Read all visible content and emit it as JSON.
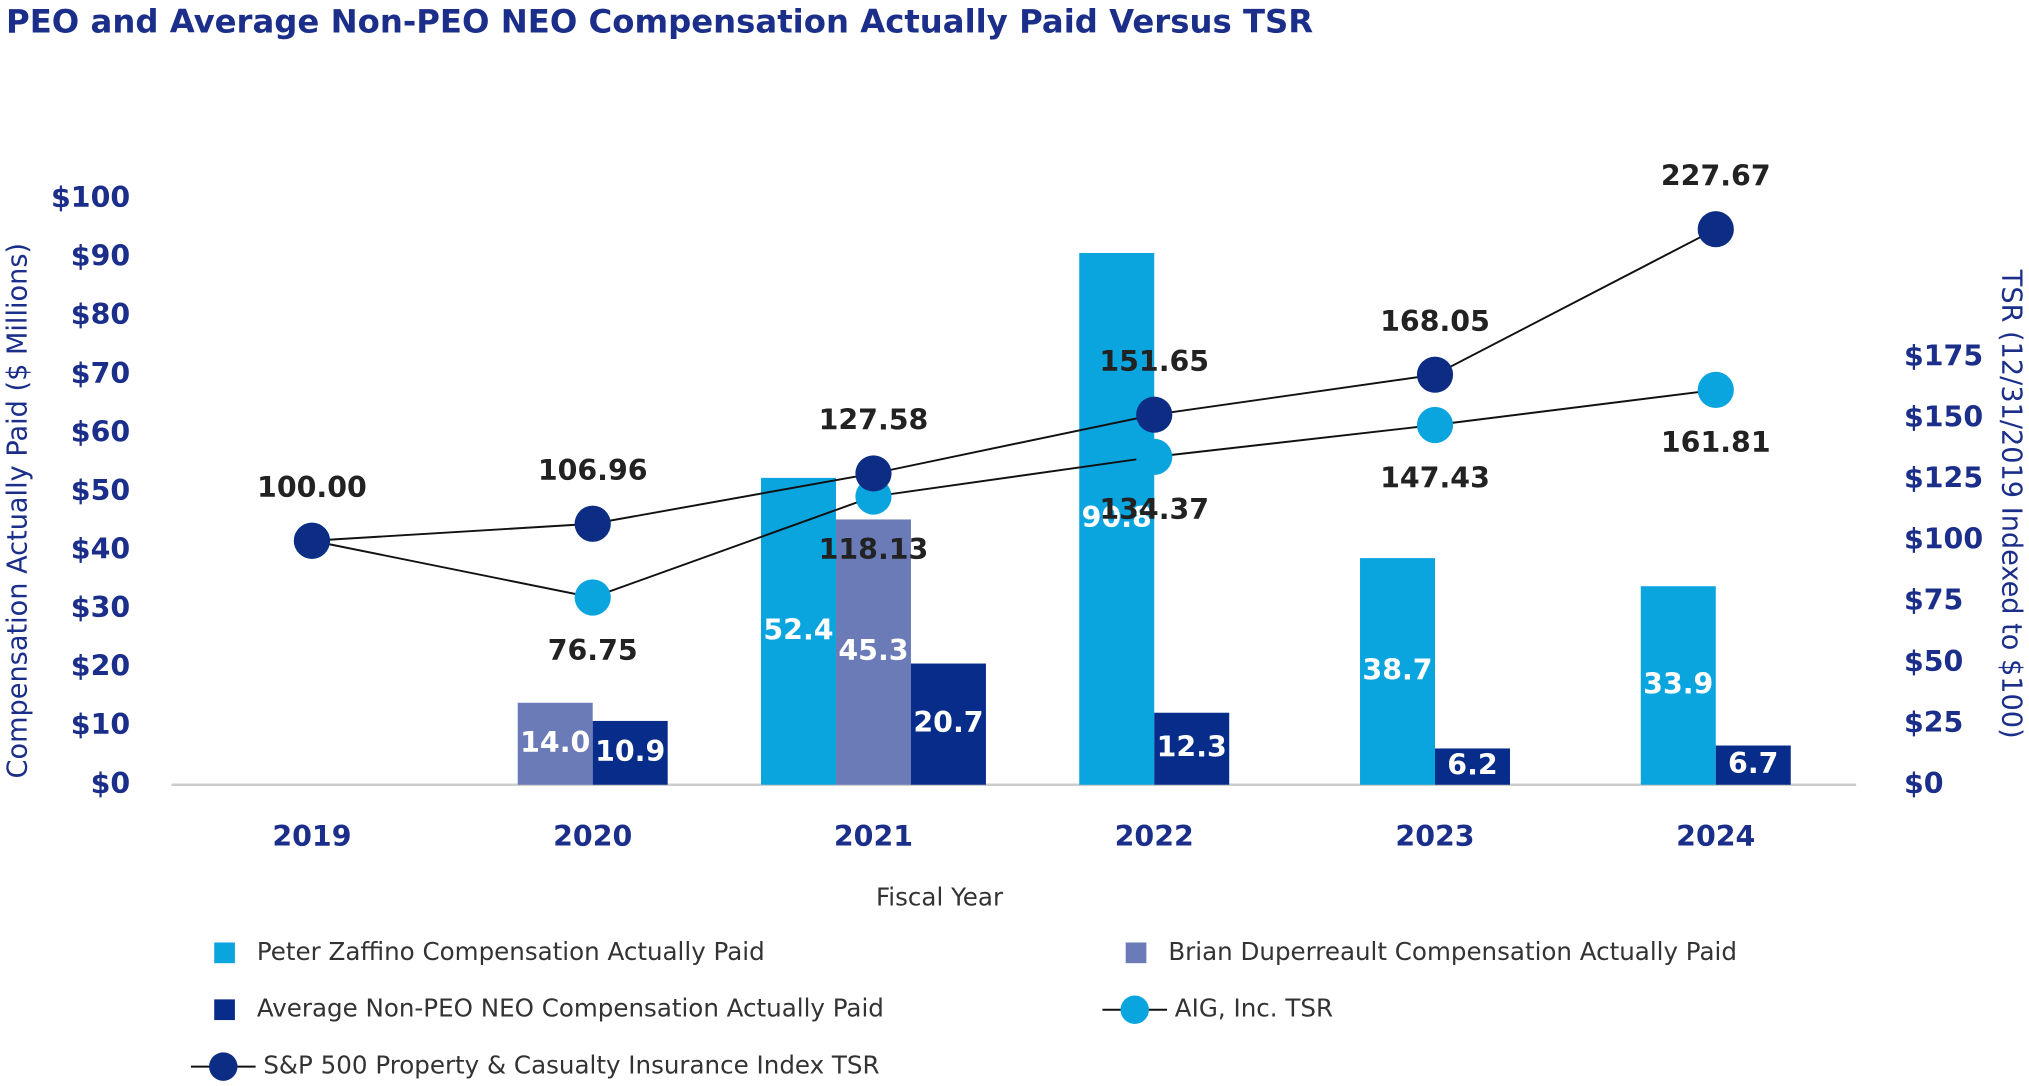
{
  "chart_data": {
    "type": "bar",
    "title": "PEO and Average Non-PEO NEO Compensation Actually Paid Versus TSR",
    "x_label": "Fiscal Year",
    "y_label": "Compensation Actually Paid ($ Millions)",
    "y2_label": "TSR (12/31/2019 Indexed to $100)",
    "categories": [
      "2019",
      "2020",
      "2021",
      "2022",
      "2023",
      "2024"
    ],
    "ylim": [
      0,
      100
    ],
    "yticks": [
      {
        "value": 0,
        "label": "$0"
      },
      {
        "value": 10,
        "label": "$10"
      },
      {
        "value": 20,
        "label": "$20"
      },
      {
        "value": 30,
        "label": "$30"
      },
      {
        "value": 40,
        "label": "$40"
      },
      {
        "value": 50,
        "label": "$50"
      },
      {
        "value": 60,
        "label": "$60"
      },
      {
        "value": 70,
        "label": "$70"
      },
      {
        "value": 80,
        "label": "$80"
      },
      {
        "value": 90,
        "label": "$90"
      },
      {
        "value": 100,
        "label": "$100"
      }
    ],
    "y2lim": [
      0,
      240
    ],
    "y2ticks": [
      {
        "value": 0,
        "label": "$0"
      },
      {
        "value": 25,
        "label": "$25"
      },
      {
        "value": 50,
        "label": "$50"
      },
      {
        "value": 75,
        "label": "$75"
      },
      {
        "value": 100,
        "label": "$100"
      },
      {
        "value": 125,
        "label": "$125"
      },
      {
        "value": 150,
        "label": "$150"
      },
      {
        "value": 175,
        "label": "$175"
      }
    ],
    "series": [
      {
        "name": "Peter Zaffino Compensation Actually Paid",
        "type": "bar",
        "color": "#0aa5df",
        "values": [
          null,
          null,
          52.4,
          90.8,
          38.7,
          33.9
        ],
        "value_labels": [
          null,
          null,
          "52.4",
          "90.8",
          "38.7",
          "33.9"
        ]
      },
      {
        "name": "Brian Duperreault Compensation Actually Paid",
        "type": "bar",
        "color": "#6b7bb8",
        "values": [
          null,
          14.0,
          45.3,
          null,
          null,
          null
        ],
        "value_labels": [
          null,
          "14.0",
          "45.3",
          null,
          null,
          null
        ]
      },
      {
        "name": "Average Non-PEO NEO Compensation Actually Paid",
        "type": "bar",
        "color": "#072c8a",
        "values": [
          null,
          10.9,
          20.7,
          12.3,
          6.2,
          6.7
        ],
        "value_labels": [
          null,
          "10.9",
          "20.7",
          "12.3",
          "6.2",
          "6.7"
        ]
      },
      {
        "name": "AIG, Inc. TSR",
        "type": "line",
        "axis": "y2",
        "color": "#0aa5df",
        "values": [
          100.0,
          76.75,
          118.13,
          134.37,
          147.43,
          161.81
        ],
        "value_labels": [
          null,
          "76.75",
          "118.13",
          "134.37",
          "147.43",
          "161.81"
        ]
      },
      {
        "name": "S&P 500 Property & Casualty Insurance Index TSR",
        "type": "line",
        "axis": "y2",
        "color": "#0c2d83",
        "values": [
          100.0,
          106.96,
          127.58,
          151.65,
          168.05,
          227.67
        ],
        "value_labels": [
          "100.00",
          "106.96",
          "127.58",
          "151.65",
          "168.05",
          "227.67"
        ]
      }
    ]
  }
}
